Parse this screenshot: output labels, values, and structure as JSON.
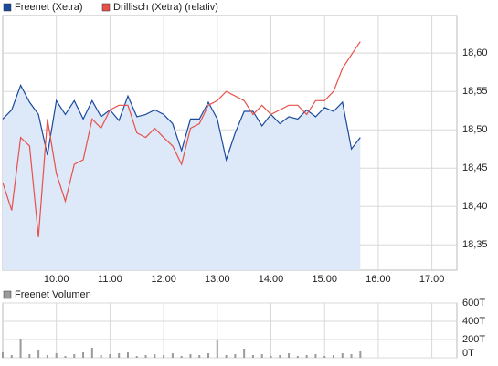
{
  "chart_data": [
    {
      "type": "line",
      "legend": "top-left",
      "grid": true,
      "x": [
        540,
        550,
        560,
        570,
        580,
        590,
        600,
        610,
        620,
        630,
        640,
        650,
        660,
        670,
        680,
        690,
        700,
        710,
        720,
        730,
        740,
        750,
        760,
        770,
        780,
        790,
        800,
        810,
        820,
        830,
        840,
        850,
        860,
        870,
        880,
        890,
        900,
        910,
        920,
        930,
        940
      ],
      "xlim": [
        540,
        1048
      ],
      "xticks": [
        {
          "value": 600,
          "label": "10:00"
        },
        {
          "value": 660,
          "label": "11:00"
        },
        {
          "value": 720,
          "label": "12:00"
        },
        {
          "value": 780,
          "label": "13:00"
        },
        {
          "value": 840,
          "label": "14:00"
        },
        {
          "value": 900,
          "label": "15:00"
        },
        {
          "value": 960,
          "label": "16:00"
        },
        {
          "value": 1020,
          "label": "17:00"
        }
      ],
      "ylim": [
        18.317,
        18.649
      ],
      "yticks": [
        {
          "value": 18.35,
          "label": "18,35"
        },
        {
          "value": 18.4,
          "label": "18,40"
        },
        {
          "value": 18.45,
          "label": "18,45"
        },
        {
          "value": 18.5,
          "label": "18,50"
        },
        {
          "value": 18.55,
          "label": "18,55"
        },
        {
          "value": 18.6,
          "label": "18,60"
        }
      ],
      "series": [
        {
          "name": "Freenet (Xetra)",
          "color": "#1a4a9e",
          "area": true,
          "area_color": "#dde8f8",
          "values": [
            18.514,
            18.526,
            18.558,
            18.536,
            18.52,
            18.467,
            18.538,
            18.52,
            18.538,
            18.514,
            18.538,
            18.517,
            18.526,
            18.512,
            18.544,
            18.517,
            18.52,
            18.526,
            18.52,
            18.508,
            18.473,
            18.514,
            18.514,
            18.536,
            18.514,
            18.461,
            18.496,
            18.524,
            18.524,
            18.505,
            18.52,
            18.508,
            18.517,
            18.514,
            18.526,
            18.517,
            18.529,
            18.524,
            18.536,
            18.475,
            18.49
          ]
        },
        {
          "name": "Drillisch (Xetra) (relativ)",
          "color": "#e8504a",
          "area": false,
          "values": [
            18.431,
            18.395,
            18.49,
            18.479,
            18.36,
            18.514,
            18.443,
            18.407,
            18.455,
            18.461,
            18.514,
            18.502,
            18.526,
            18.532,
            18.532,
            18.496,
            18.49,
            18.502,
            18.49,
            18.479,
            18.455,
            18.502,
            18.508,
            18.532,
            18.538,
            18.55,
            18.544,
            18.538,
            18.52,
            18.532,
            18.52,
            18.526,
            18.532,
            18.532,
            18.52,
            18.538,
            18.538,
            18.55,
            18.58,
            18.598,
            18.615
          ]
        }
      ]
    },
    {
      "type": "bar",
      "grid": true,
      "name": "Freenet Volumen",
      "color": "#9a9a9a",
      "x": [
        540,
        550,
        560,
        570,
        580,
        590,
        600,
        610,
        620,
        630,
        640,
        650,
        660,
        670,
        680,
        690,
        700,
        710,
        720,
        730,
        740,
        750,
        760,
        770,
        780,
        790,
        800,
        810,
        820,
        830,
        840,
        850,
        860,
        870,
        880,
        890,
        900,
        910,
        920,
        930,
        940
      ],
      "xlim": [
        540,
        1048
      ],
      "ylim": [
        0,
        600000
      ],
      "yticks": [
        {
          "value": 0,
          "label": "0T"
        },
        {
          "value": 200000,
          "label": "200T"
        },
        {
          "value": 400000,
          "label": "400T"
        },
        {
          "value": 600000,
          "label": "600T"
        }
      ],
      "values": [
        60000,
        30000,
        210000,
        40000,
        90000,
        30000,
        50000,
        20000,
        40000,
        60000,
        110000,
        30000,
        40000,
        50000,
        60000,
        20000,
        30000,
        40000,
        30000,
        50000,
        20000,
        40000,
        30000,
        50000,
        190000,
        30000,
        40000,
        100000,
        30000,
        40000,
        20000,
        30000,
        50000,
        20000,
        30000,
        40000,
        20000,
        30000,
        50000,
        40000,
        70000
      ]
    }
  ]
}
